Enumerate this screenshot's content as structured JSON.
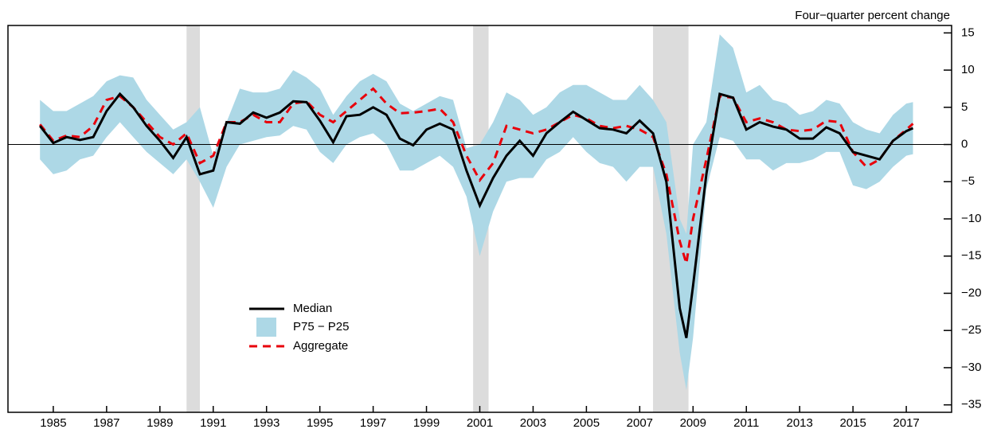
{
  "chart_data": {
    "type": "line",
    "axis_title": "Four−quarter percent change",
    "x": [
      1985.0,
      1985.5,
      1986.0,
      1986.5,
      1987.0,
      1987.5,
      1988.0,
      1988.5,
      1989.0,
      1989.5,
      1990.0,
      1990.5,
      1991.0,
      1991.5,
      1992.0,
      1992.5,
      1993.0,
      1993.5,
      1994.0,
      1994.5,
      1995.0,
      1995.5,
      1996.0,
      1996.5,
      1997.0,
      1997.5,
      1998.0,
      1998.5,
      1999.0,
      1999.5,
      2000.0,
      2000.5,
      2001.0,
      2001.5,
      2002.0,
      2002.5,
      2003.0,
      2003.5,
      2004.0,
      2004.5,
      2005.0,
      2005.5,
      2006.0,
      2006.5,
      2007.0,
      2007.5,
      2008.0,
      2008.5,
      2009.0,
      2009.25,
      2009.5,
      2010.0,
      2010.5,
      2011.0,
      2011.5,
      2012.0,
      2012.5,
      2013.0,
      2013.5,
      2014.0,
      2014.5,
      2015.0,
      2015.5,
      2016.0,
      2016.5,
      2017.0,
      2017.5,
      2017.75
    ],
    "series": [
      {
        "name": "Median",
        "color": "#000000",
        "values": [
          2.5,
          0.2,
          1.0,
          0.6,
          1.0,
          4.5,
          6.8,
          5.0,
          2.5,
          0.5,
          -1.8,
          1.0,
          -4.0,
          -3.5,
          3.0,
          2.8,
          4.3,
          3.6,
          4.3,
          5.8,
          5.7,
          3.2,
          0.3,
          3.8,
          4.0,
          5.0,
          4.0,
          0.8,
          -0.1,
          2.0,
          2.8,
          2.0,
          -3.5,
          -8.2,
          -4.5,
          -1.5,
          0.5,
          -1.5,
          1.5,
          3.0,
          4.4,
          3.3,
          2.2,
          2.0,
          1.5,
          3.2,
          1.5,
          -5.0,
          -22.0,
          -26.0,
          -19.0,
          -4.0,
          6.8,
          6.3,
          2.0,
          3.0,
          2.4,
          2.0,
          0.8,
          0.8,
          2.3,
          1.5,
          -1.0,
          -1.5,
          -2.0,
          0.5,
          1.8,
          2.2
        ]
      },
      {
        "name": "P75 − P25",
        "color": "#add8e6",
        "high": [
          6,
          4.5,
          4.5,
          5.5,
          6.5,
          8.5,
          9.3,
          9,
          6,
          4,
          2,
          3,
          5,
          -1.5,
          3,
          7.5,
          7,
          7,
          7.5,
          10,
          9,
          7.5,
          4,
          6.5,
          8.5,
          9.5,
          8.5,
          5.5,
          4.5,
          5.5,
          6.5,
          6,
          -0.5,
          0,
          3,
          7,
          6,
          4,
          5,
          7,
          8,
          8,
          7,
          6,
          6,
          8,
          6,
          3,
          -10,
          -12,
          0,
          3,
          14.8,
          13,
          7,
          8,
          6,
          5.5,
          4,
          4.5,
          6,
          5.5,
          3,
          2,
          1.5,
          4,
          5.5,
          5.7
        ],
        "low": [
          -2,
          -4,
          -3.5,
          -2,
          -1.5,
          1,
          3,
          1,
          -1,
          -2.5,
          -4,
          -2,
          -5,
          -8.5,
          -3,
          0,
          0.5,
          1,
          1.2,
          2.5,
          2,
          -1,
          -2.5,
          0,
          1,
          1.5,
          0,
          -3.5,
          -3.5,
          -2.5,
          -1.5,
          -3,
          -7,
          -15,
          -9,
          -5,
          -4.5,
          -4.5,
          -2,
          -1,
          1,
          -1,
          -2.5,
          -3,
          -5,
          -3,
          -3,
          -12,
          -28,
          -33,
          -26,
          -6,
          1,
          0.5,
          -2,
          -2,
          -3.5,
          -2.5,
          -2.5,
          -2,
          -1,
          -1,
          -5.5,
          -6,
          -5,
          -3,
          -1.5,
          -1.3
        ]
      },
      {
        "name": "Aggregate",
        "color": "#e8000b",
        "values": [
          2.7,
          0.5,
          1.2,
          1.0,
          2.5,
          6.0,
          6.5,
          5.0,
          3.0,
          1.0,
          0.0,
          1.5,
          -2.5,
          -1.5,
          3.0,
          3.0,
          4.0,
          3.0,
          3.0,
          5.5,
          5.8,
          4.0,
          3.0,
          4.5,
          6.0,
          7.5,
          5.5,
          4.2,
          4.3,
          4.5,
          4.8,
          3.0,
          -1.5,
          -4.8,
          -2.5,
          2.5,
          2.0,
          1.5,
          2.0,
          3.0,
          4.0,
          3.5,
          2.5,
          2.2,
          2.5,
          2.0,
          1.0,
          -4.0,
          -13.0,
          -16.0,
          -10.0,
          -2.0,
          6.5,
          6.3,
          3.0,
          3.5,
          3.0,
          2.0,
          1.8,
          2.0,
          3.2,
          3.0,
          -1.0,
          -3.0,
          -2.0,
          0.5,
          2.0,
          2.8
        ]
      }
    ],
    "recessions": [
      [
        1990.5,
        1991.0
      ],
      [
        2001.25,
        2001.83
      ],
      [
        2008.0,
        2009.33
      ]
    ],
    "recession_color": "#dcdcdc",
    "zero_line": true,
    "xlim": [
      1983.8,
      2019.2
    ],
    "xticks": [
      {
        "value": 1985.5,
        "label": "1985"
      },
      {
        "value": 1987.5,
        "label": "1987"
      },
      {
        "value": 1989.5,
        "label": "1989"
      },
      {
        "value": 1991.5,
        "label": "1991"
      },
      {
        "value": 1993.5,
        "label": "1993"
      },
      {
        "value": 1995.5,
        "label": "1995"
      },
      {
        "value": 1997.5,
        "label": "1997"
      },
      {
        "value": 1999.5,
        "label": "1999"
      },
      {
        "value": 2001.5,
        "label": "2001"
      },
      {
        "value": 2003.5,
        "label": "2003"
      },
      {
        "value": 2005.5,
        "label": "2005"
      },
      {
        "value": 2007.5,
        "label": "2007"
      },
      {
        "value": 2009.5,
        "label": "2009"
      },
      {
        "value": 2011.5,
        "label": "2011"
      },
      {
        "value": 2013.5,
        "label": "2013"
      },
      {
        "value": 2015.5,
        "label": "2015"
      },
      {
        "value": 2017.5,
        "label": "2017"
      }
    ],
    "ylim": [
      -36,
      16
    ],
    "yticks": [
      15,
      10,
      5,
      0,
      {
        "value": -5,
        "label": "−5"
      },
      {
        "value": -10,
        "label": "−10"
      },
      {
        "value": -15,
        "label": "−15"
      },
      {
        "value": -20,
        "label": "−20"
      },
      {
        "value": -25,
        "label": "−25"
      },
      {
        "value": -30,
        "label": "−30"
      },
      {
        "value": -35,
        "label": "−35"
      }
    ]
  }
}
